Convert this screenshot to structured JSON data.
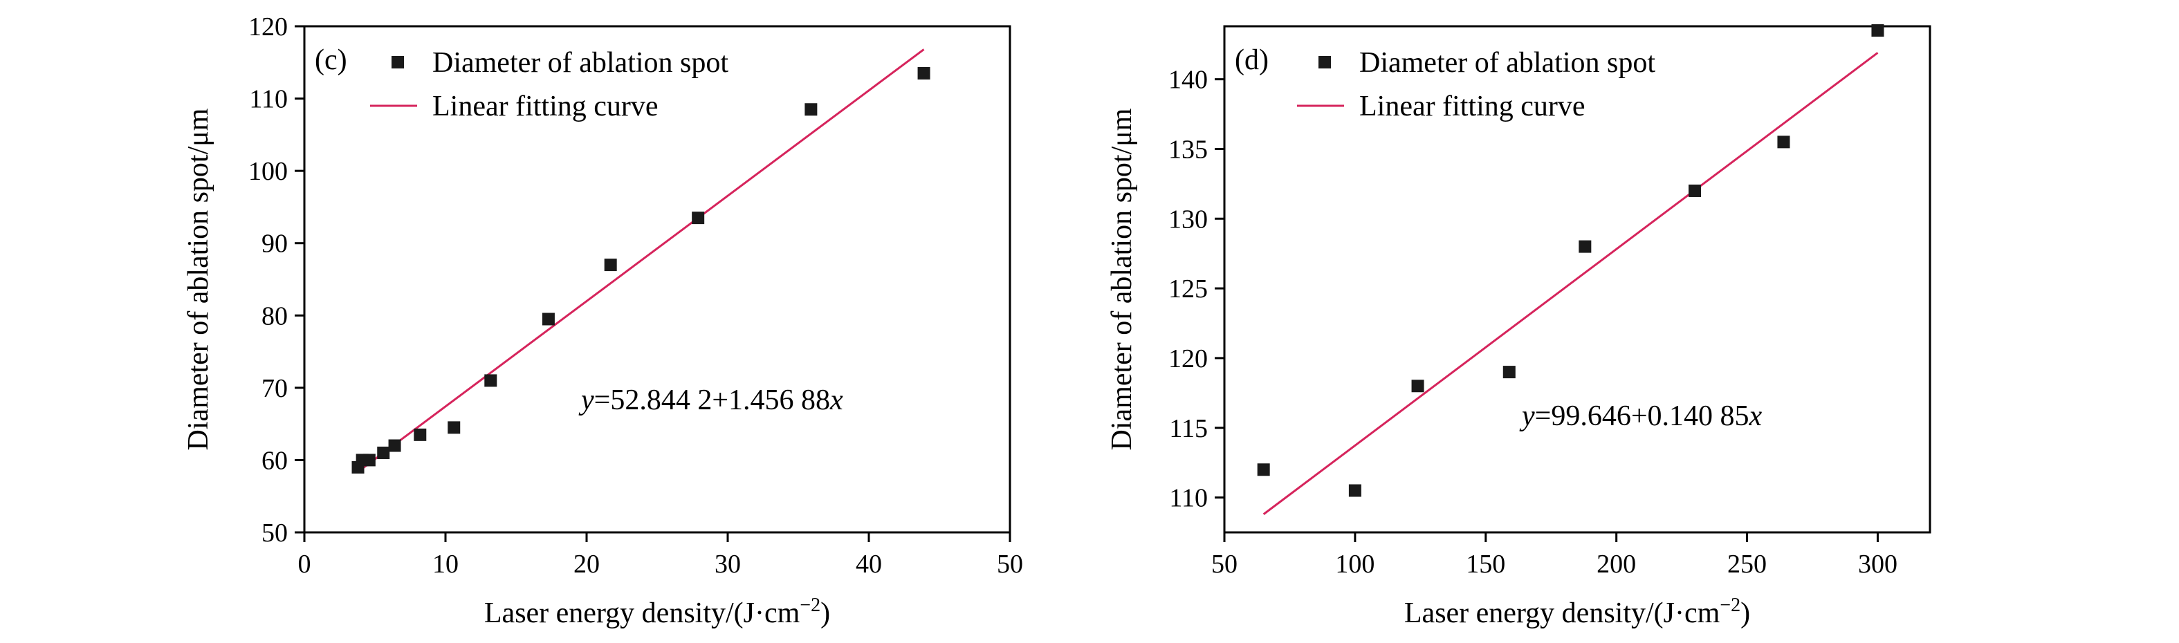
{
  "chart_data": [
    {
      "type": "scatter",
      "panel_label": "(c)",
      "xlabel": "Laser energy density/(J·cm",
      "xlabel_sup": "−2",
      "xlabel_close": ")",
      "ylabel": "Diameter of ablation spot/μm",
      "xlim": [
        0,
        50
      ],
      "ylim": [
        50,
        120
      ],
      "xticks": [
        0,
        10,
        20,
        30,
        40,
        50
      ],
      "yticks": [
        50,
        60,
        70,
        80,
        90,
        100,
        110,
        120
      ],
      "legend_position": "top-left",
      "series": [
        {
          "name": "Diameter of ablation spot",
          "color": "#1a1a1a",
          "marker": "square",
          "points": [
            {
              "x": 3.8,
              "y": 59.0
            },
            {
              "x": 4.1,
              "y": 60.0
            },
            {
              "x": 4.6,
              "y": 60.0
            },
            {
              "x": 5.6,
              "y": 61.0
            },
            {
              "x": 6.4,
              "y": 62.0
            },
            {
              "x": 8.2,
              "y": 63.5
            },
            {
              "x": 10.6,
              "y": 64.5
            },
            {
              "x": 13.2,
              "y": 71.0
            },
            {
              "x": 17.3,
              "y": 79.5
            },
            {
              "x": 21.7,
              "y": 87.0
            },
            {
              "x": 27.9,
              "y": 93.5
            },
            {
              "x": 35.9,
              "y": 108.5
            },
            {
              "x": 43.9,
              "y": 113.5
            }
          ]
        },
        {
          "name": "Linear fitting curve",
          "color": "#d6245c",
          "type": "line",
          "intercept": 52.8442,
          "slope": 1.45688,
          "x_range": [
            3.8,
            43.9
          ]
        }
      ],
      "equation": {
        "y": "y",
        "rest": "=52.844 2+1.456 88",
        "x": "x"
      }
    },
    {
      "type": "scatter",
      "panel_label": "(d)",
      "xlabel": "Laser energy density/(J·cm",
      "xlabel_sup": "−2",
      "xlabel_close": ")",
      "ylabel": "Diameter of ablation spot/μm",
      "xlim": [
        50,
        320
      ],
      "ylim": [
        107.5,
        143.8
      ],
      "xticks": [
        50,
        100,
        150,
        200,
        250,
        300
      ],
      "yticks": [
        110,
        115,
        120,
        125,
        130,
        135,
        140
      ],
      "legend_position": "top-left",
      "series": [
        {
          "name": "Diameter of ablation spot",
          "color": "#1a1a1a",
          "marker": "square",
          "points": [
            {
              "x": 65,
              "y": 112.0
            },
            {
              "x": 100,
              "y": 110.5
            },
            {
              "x": 124,
              "y": 118.0
            },
            {
              "x": 159,
              "y": 119.0
            },
            {
              "x": 188,
              "y": 128.0
            },
            {
              "x": 230,
              "y": 132.0
            },
            {
              "x": 264,
              "y": 135.5
            },
            {
              "x": 300,
              "y": 143.5
            }
          ]
        },
        {
          "name": "Linear fitting curve",
          "color": "#d6245c",
          "type": "line",
          "intercept": 99.646,
          "slope": 0.14085,
          "x_range": [
            65,
            300
          ]
        }
      ],
      "equation": {
        "y": "y",
        "rest": "=99.646+0.140 85",
        "x": "x"
      }
    }
  ]
}
